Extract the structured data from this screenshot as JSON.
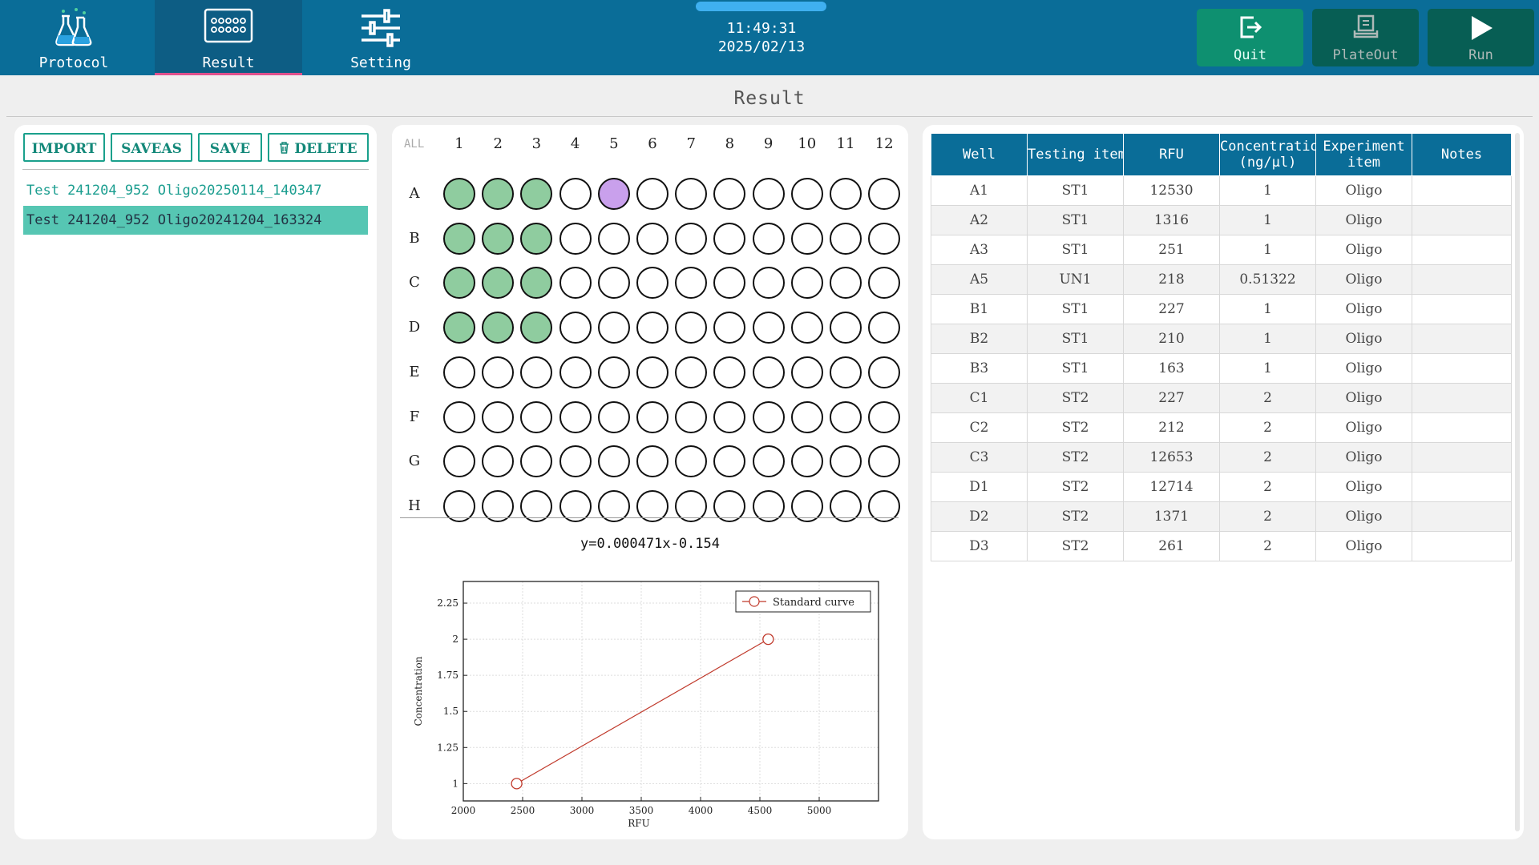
{
  "nav": {
    "tabs": [
      {
        "label": "Protocol",
        "icon": "flask-icon"
      },
      {
        "label": "Result",
        "icon": "plate-icon",
        "active": true
      },
      {
        "label": "Setting",
        "icon": "sliders-icon"
      }
    ],
    "time": "11:49:31",
    "date": "2025/02/13",
    "actions": [
      {
        "label": "Quit",
        "icon": "exit-icon"
      },
      {
        "label": "PlateOut",
        "icon": "plate-out-icon"
      },
      {
        "label": "Run",
        "icon": "play-icon"
      }
    ]
  },
  "page": {
    "title": "Result"
  },
  "left": {
    "buttons": {
      "import": "IMPORT",
      "saveas": "SAVEAS",
      "save": "SAVE",
      "delete": "DELETE"
    },
    "files": [
      {
        "name": "Test 241204_952 Oligo20250114_140347",
        "selected": false
      },
      {
        "name": "Test 241204_952 Oligo20241204_163324",
        "selected": true
      }
    ]
  },
  "plate": {
    "all_label": "ALL",
    "columns": [
      "1",
      "2",
      "3",
      "4",
      "5",
      "6",
      "7",
      "8",
      "9",
      "10",
      "11",
      "12"
    ],
    "rows": [
      "A",
      "B",
      "C",
      "D",
      "E",
      "F",
      "G",
      "H"
    ],
    "standard_wells": [
      "A1",
      "A2",
      "A3",
      "B1",
      "B2",
      "B3",
      "C1",
      "C2",
      "C3",
      "D1",
      "D2",
      "D3"
    ],
    "unknown_wells": [
      "A5"
    ],
    "colors": {
      "standard": "#8fcc9f",
      "unknown": "#c9a0ec",
      "empty": "#ffffff"
    }
  },
  "equation": "y=0.000471x-0.154",
  "chart_data": {
    "type": "line",
    "xlabel": "RFU",
    "ylabel": "Concentration",
    "xlim": [
      2000,
      5500
    ],
    "ylim": [
      0.88,
      2.4
    ],
    "xticks": [
      2000,
      2500,
      3000,
      3500,
      4000,
      4500,
      5000
    ],
    "yticks": [
      1,
      1.25,
      1.5,
      1.75,
      2,
      2.25
    ],
    "ytick_labels": [
      "1",
      "1.25",
      "1.5",
      "1.75",
      "2",
      "2.25"
    ],
    "grid": true,
    "legend_position": "top-right",
    "series": [
      {
        "name": "Standard curve",
        "color": "#c0392b",
        "x": [
          2450,
          4570
        ],
        "y": [
          1,
          2
        ]
      }
    ]
  },
  "table": {
    "headers": [
      "Well",
      "Testing item",
      "RFU",
      "Concentration\n(ng/μl)",
      "Experiment\nitem",
      "Notes"
    ],
    "rows": [
      [
        "A1",
        "ST1",
        "12530",
        "1",
        "Oligo",
        ""
      ],
      [
        "A2",
        "ST1",
        "1316",
        "1",
        "Oligo",
        ""
      ],
      [
        "A3",
        "ST1",
        "251",
        "1",
        "Oligo",
        ""
      ],
      [
        "A5",
        "UN1",
        "218",
        "0.51322",
        "Oligo",
        ""
      ],
      [
        "B1",
        "ST1",
        "227",
        "1",
        "Oligo",
        ""
      ],
      [
        "B2",
        "ST1",
        "210",
        "1",
        "Oligo",
        ""
      ],
      [
        "B3",
        "ST1",
        "163",
        "1",
        "Oligo",
        ""
      ],
      [
        "C1",
        "ST2",
        "227",
        "2",
        "Oligo",
        ""
      ],
      [
        "C2",
        "ST2",
        "212",
        "2",
        "Oligo",
        ""
      ],
      [
        "C3",
        "ST2",
        "12653",
        "2",
        "Oligo",
        ""
      ],
      [
        "D1",
        "ST2",
        "12714",
        "2",
        "Oligo",
        ""
      ],
      [
        "D2",
        "ST2",
        "1371",
        "2",
        "Oligo",
        ""
      ],
      [
        "D3",
        "ST2",
        "261",
        "2",
        "Oligo",
        ""
      ]
    ]
  }
}
